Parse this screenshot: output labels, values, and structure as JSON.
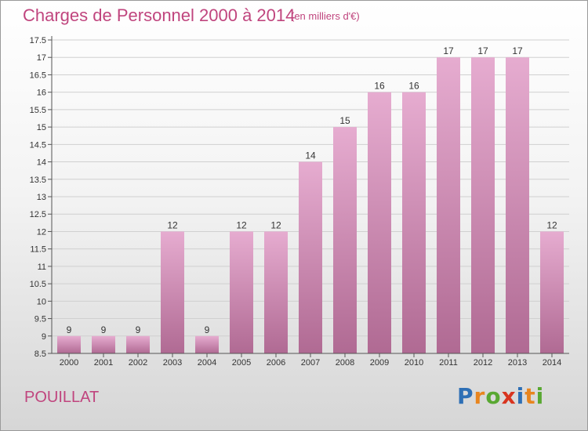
{
  "header": {
    "title": "Charges de Personnel 2000 à 2014",
    "unit": "(en milliers d'€)"
  },
  "footer": {
    "town": "POUILLAT",
    "logo": "Proxiti",
    "logo_colors": [
      "#2e6fb5",
      "#e8851f",
      "#59a832",
      "#d8341f",
      "#2e6fb5",
      "#e8851f",
      "#59a832"
    ]
  },
  "colors": {
    "bar_top": "#e6acd0",
    "bar_bottom": "#b06a93",
    "title": "#c0457e"
  },
  "chart_data": {
    "type": "bar",
    "title": "Charges de Personnel 2000 à 2014",
    "categories": [
      "2000",
      "2001",
      "2002",
      "2003",
      "2004",
      "2005",
      "2006",
      "2007",
      "2008",
      "2009",
      "2010",
      "2011",
      "2012",
      "2013",
      "2014"
    ],
    "values": [
      9,
      9,
      9,
      12,
      9,
      12,
      12,
      14,
      15,
      16,
      16,
      17,
      17,
      17,
      12
    ],
    "ylim": [
      8.5,
      17.5
    ],
    "yticks": [
      "8.5",
      "9",
      "9.5",
      "10",
      "10.5",
      "11",
      "11.5",
      "12",
      "12.5",
      "13",
      "13.5",
      "14",
      "14.5",
      "15",
      "15.5",
      "16",
      "16.5",
      "17",
      "17.5"
    ],
    "grid": true
  }
}
